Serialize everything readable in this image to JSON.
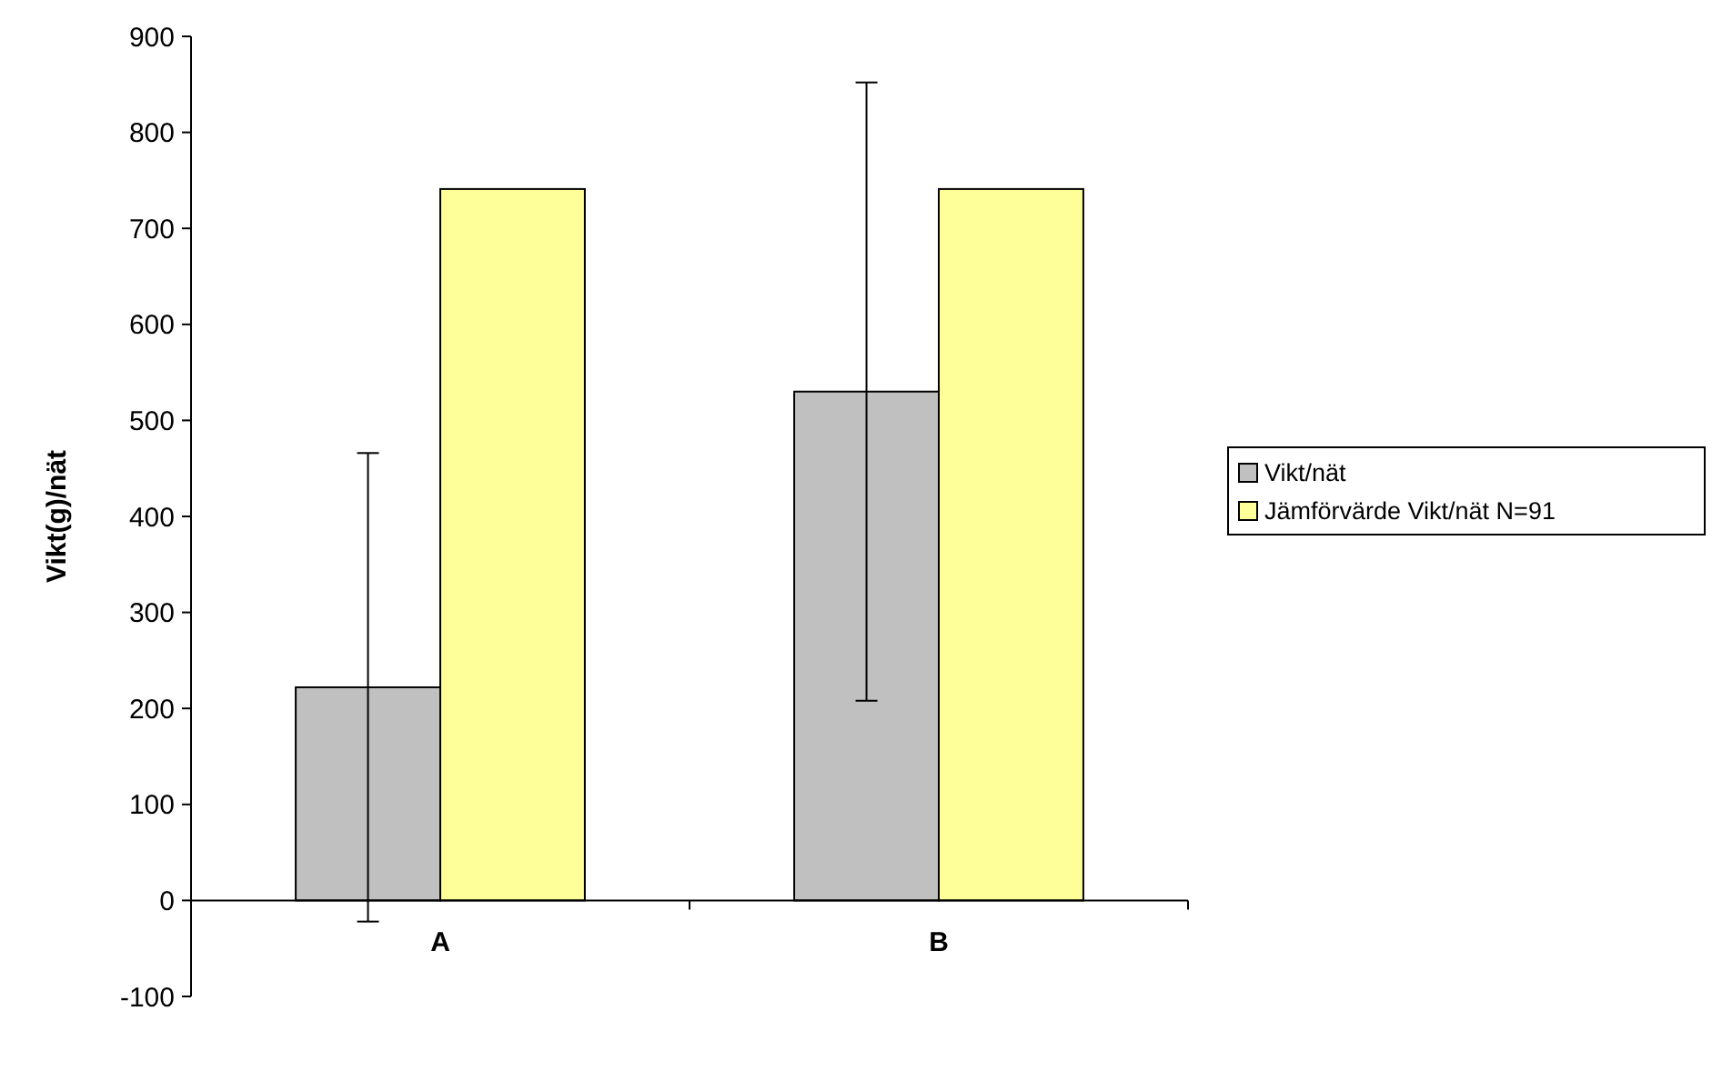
{
  "chart_data": {
    "type": "bar",
    "ylabel": "Vikt(g)/nät",
    "categories": [
      "A",
      "B"
    ],
    "series": [
      {
        "name": "Vikt/nät",
        "color": "#c0c0c0",
        "values": [
          222,
          530
        ],
        "errors": [
          244,
          322
        ]
      },
      {
        "name": "Jämförvärde Vikt/nät N=91",
        "color": "#ffff99",
        "values": [
          741,
          741
        ]
      }
    ],
    "ylim": [
      -100,
      900
    ],
    "yticks": [
      -100,
      0,
      100,
      200,
      300,
      400,
      500,
      600,
      700,
      800,
      900
    ],
    "grid": false,
    "legend": "right"
  }
}
